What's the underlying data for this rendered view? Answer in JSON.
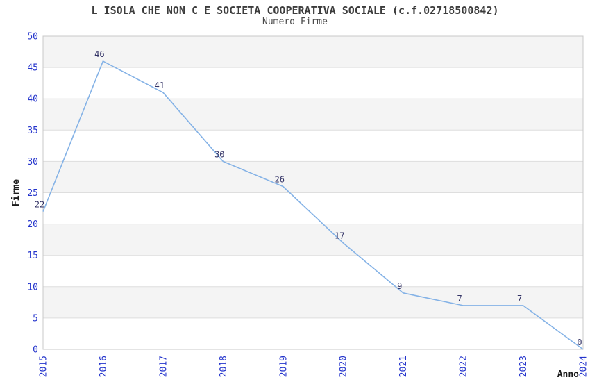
{
  "chart": {
    "title": "L ISOLA CHE NON C E SOCIETA COOPERATIVA SOCIALE (c.f.02718500842)",
    "subtitle": "Numero Firme"
  },
  "chart_data": {
    "type": "line",
    "x": [
      "2015",
      "2016",
      "2017",
      "2018",
      "2019",
      "2020",
      "2021",
      "2022",
      "2023",
      "2024"
    ],
    "values": [
      22,
      46,
      41,
      30,
      26,
      17,
      9,
      7,
      7,
      0
    ],
    "point_labels": [
      "22",
      "46",
      "41",
      "30",
      "26",
      "17",
      "9",
      "7",
      "7",
      "0"
    ],
    "title": "L ISOLA CHE NON C E SOCIETA COOPERATIVA SOCIALE (c.f.02718500842)",
    "subtitle": "Numero Firme",
    "xlabel": "Anno",
    "ylabel": "Firme",
    "ylim": [
      0,
      50
    ],
    "ytick_step": 5,
    "yticks": [
      0,
      5,
      10,
      15,
      20,
      25,
      30,
      35,
      40,
      45,
      50
    ],
    "grid": true,
    "legend_position": "none",
    "band_pattern": "alternating top band gray, 5-unit bands",
    "colors": {
      "line": "#84b2e6",
      "tick_label": "#2434cc",
      "point_label": "#333366",
      "band_gray": "#f4f4f4",
      "band_white": "#ffffff",
      "gridline": "#dedede",
      "plot_border": "#c8c8c8",
      "title_text": "#3c3c3c",
      "axis_title_text": "#1a1a1a"
    }
  }
}
